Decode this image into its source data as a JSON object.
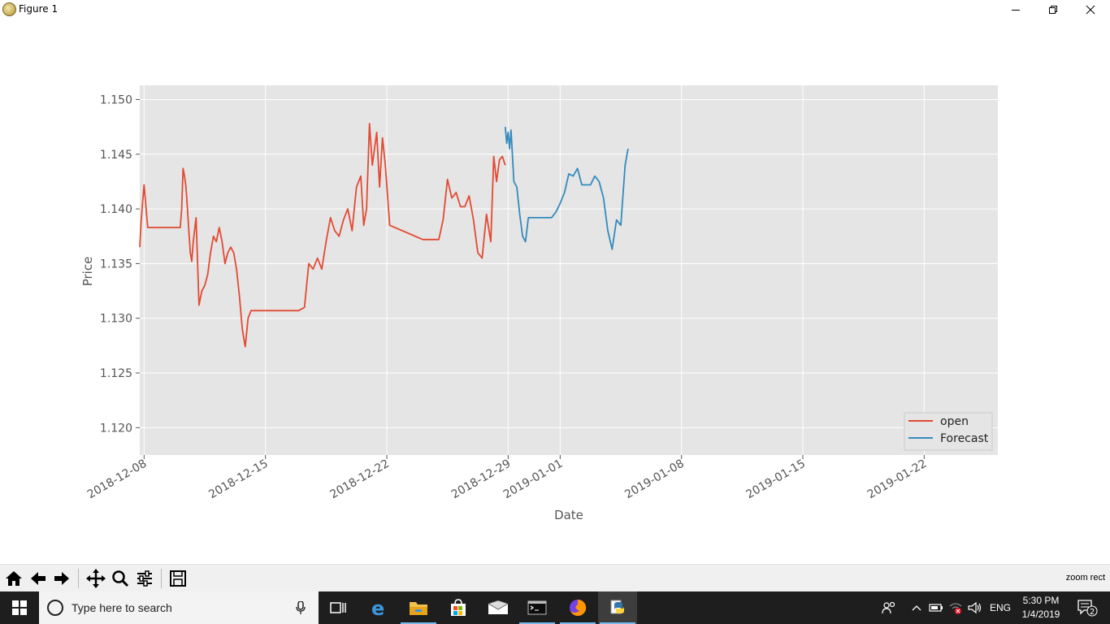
{
  "window": {
    "title": "Figure 1"
  },
  "chart_data": {
    "type": "line",
    "xlabel": "Date",
    "ylabel": "Price",
    "ylim": [
      1.1175,
      1.1513
    ],
    "xlim": [
      "2018-12-07T18:00",
      "2019-01-26T06:00"
    ],
    "yticks": [
      1.12,
      1.125,
      1.13,
      1.135,
      1.14,
      1.145,
      1.15
    ],
    "ytick_labels": [
      "1.120",
      "1.125",
      "1.130",
      "1.135",
      "1.140",
      "1.145",
      "1.150"
    ],
    "xticks": [
      "2018-12-08",
      "2018-12-15",
      "2018-12-22",
      "2018-12-29",
      "2019-01-01",
      "2019-01-08",
      "2019-01-15",
      "2019-01-22"
    ],
    "grid": true,
    "style": "ggplot",
    "legend": "lower-right",
    "series": [
      {
        "name": "open",
        "color": "#E24A33",
        "x": [
          "2018-12-07T18:00",
          "2018-12-07T20:00",
          "2018-12-08T00:00",
          "2018-12-08T05:00",
          "2018-12-08T06:00",
          "2018-12-08T08:00",
          "2018-12-10T02:00",
          "2018-12-10T04:00",
          "2018-12-10T06:00",
          "2018-12-10T08:00",
          "2018-12-10T10:00",
          "2018-12-10T12:00",
          "2018-12-10T14:00",
          "2018-12-10T16:00",
          "2018-12-10T18:00",
          "2018-12-10T20:00",
          "2018-12-11T00:00",
          "2018-12-11T04:00",
          "2018-12-11T08:00",
          "2018-12-11T12:00",
          "2018-12-11T16:00",
          "2018-12-11T20:00",
          "2018-12-12T00:00",
          "2018-12-12T04:00",
          "2018-12-12T08:00",
          "2018-12-12T12:00",
          "2018-12-12T16:00",
          "2018-12-12T20:00",
          "2018-12-13T00:00",
          "2018-12-13T04:00",
          "2018-12-13T08:00",
          "2018-12-13T12:00",
          "2018-12-13T16:00",
          "2018-12-13T20:00",
          "2018-12-14T00:00",
          "2018-12-14T04:00",
          "2018-12-14T08:00",
          "2018-12-14T10:00",
          "2018-12-14T12:00",
          "2018-12-14T14:00",
          "2018-12-14T18:00",
          "2018-12-14T20:00",
          "2018-12-15T00:00",
          "2018-12-15T02:00",
          "2018-12-15T10:00",
          "2018-12-16T22:00",
          "2018-12-17T06:00",
          "2018-12-17T12:00",
          "2018-12-17T18:00",
          "2018-12-18T00:00",
          "2018-12-18T06:00",
          "2018-12-18T12:00",
          "2018-12-18T18:00",
          "2018-12-19T00:00",
          "2018-12-19T06:00",
          "2018-12-19T12:00",
          "2018-12-19T18:00",
          "2018-12-20T00:00",
          "2018-12-20T06:00",
          "2018-12-20T12:00",
          "2018-12-20T16:00",
          "2018-12-20T20:00",
          "2018-12-21T00:00",
          "2018-12-21T04:00",
          "2018-12-21T10:00",
          "2018-12-21T14:00",
          "2018-12-21T18:00",
          "2018-12-21T22:00",
          "2018-12-22T04:00",
          "2018-12-24T02:00",
          "2018-12-24T06:00",
          "2018-12-24T12:00",
          "2018-12-24T18:00",
          "2018-12-25T00:00",
          "2018-12-25T06:00",
          "2018-12-25T12:00",
          "2018-12-25T18:00",
          "2018-12-26T00:00",
          "2018-12-26T06:00",
          "2018-12-26T12:00",
          "2018-12-26T18:00",
          "2018-12-27T00:00",
          "2018-12-27T06:00",
          "2018-12-27T12:00",
          "2018-12-27T18:00",
          "2018-12-28T00:00",
          "2018-12-28T04:00",
          "2018-12-28T08:00",
          "2018-12-28T12:00",
          "2018-12-28T16:00",
          "2018-12-28T20:00"
        ],
        "y": [
          1.1365,
          1.139,
          1.1422,
          1.1383,
          1.1383,
          1.1383,
          1.1383,
          1.14,
          1.1437,
          1.143,
          1.142,
          1.14,
          1.138,
          1.136,
          1.1352,
          1.137,
          1.1392,
          1.1312,
          1.1325,
          1.133,
          1.134,
          1.136,
          1.1375,
          1.137,
          1.1383,
          1.137,
          1.135,
          1.136,
          1.1365,
          1.136,
          1.1345,
          1.132,
          1.129,
          1.1274,
          1.13,
          1.1307,
          1.1307,
          1.1307,
          1.1307,
          1.1307,
          1.1307,
          1.1307,
          1.1307,
          1.1307,
          1.1307,
          1.1307,
          1.131,
          1.135,
          1.1345,
          1.1355,
          1.1345,
          1.137,
          1.1392,
          1.138,
          1.1375,
          1.139,
          1.14,
          1.138,
          1.142,
          1.143,
          1.1385,
          1.14,
          1.1478,
          1.144,
          1.147,
          1.142,
          1.1465,
          1.144,
          1.1385,
          1.1372,
          1.1372,
          1.1372,
          1.1372,
          1.1372,
          1.139,
          1.1427,
          1.141,
          1.1415,
          1.1402,
          1.1402,
          1.1412,
          1.139,
          1.136,
          1.1355,
          1.1395,
          1.137,
          1.1448,
          1.1425,
          1.1445,
          1.1448,
          1.144
        ]
      },
      {
        "name": "Forecast",
        "color": "#348ABD",
        "x": [
          "2018-12-28T20:00",
          "2018-12-28T22:00",
          "2018-12-29T00:00",
          "2018-12-29T02:00",
          "2018-12-29T04:00",
          "2018-12-29T08:00",
          "2018-12-29T12:00",
          "2018-12-29T16:00",
          "2018-12-29T20:00",
          "2018-12-30T00:00",
          "2018-12-30T04:00",
          "2018-12-31T12:00",
          "2018-12-31T18:00",
          "2019-01-01T00:00",
          "2019-01-01T06:00",
          "2019-01-01T12:00",
          "2019-01-01T18:00",
          "2019-01-02T00:00",
          "2019-01-02T06:00",
          "2019-01-02T12:00",
          "2019-01-02T18:00",
          "2019-01-03T00:00",
          "2019-01-03T06:00",
          "2019-01-03T12:00",
          "2019-01-03T18:00",
          "2019-01-04T00:00",
          "2019-01-04T06:00",
          "2019-01-04T12:00",
          "2019-01-04T18:00",
          "2019-01-04T22:00"
        ],
        "y": [
          1.1475,
          1.146,
          1.147,
          1.1455,
          1.1472,
          1.1425,
          1.142,
          1.1395,
          1.1375,
          1.137,
          1.1392,
          1.1392,
          1.1397,
          1.1405,
          1.1415,
          1.1432,
          1.143,
          1.1437,
          1.1422,
          1.1422,
          1.1422,
          1.143,
          1.1425,
          1.141,
          1.138,
          1.1363,
          1.139,
          1.1385,
          1.144,
          1.1455
        ]
      }
    ]
  },
  "toolbar": {
    "buttons": [
      "home-icon",
      "back-arrow-icon",
      "forward-arrow-icon",
      "pan-icon",
      "zoom-icon",
      "subplots-icon",
      "save-icon"
    ],
    "status": "zoom rect"
  },
  "taskbar": {
    "search_placeholder": "Type here to search",
    "apps": [
      "task-view-icon",
      "edge-icon",
      "file-explorer-icon",
      "store-icon",
      "mail-icon",
      "terminal-icon",
      "firefox-icon",
      "python-icon"
    ],
    "language": "ENG",
    "time": "5:30 PM",
    "date": "1/4/2019",
    "notification_count": "2"
  }
}
